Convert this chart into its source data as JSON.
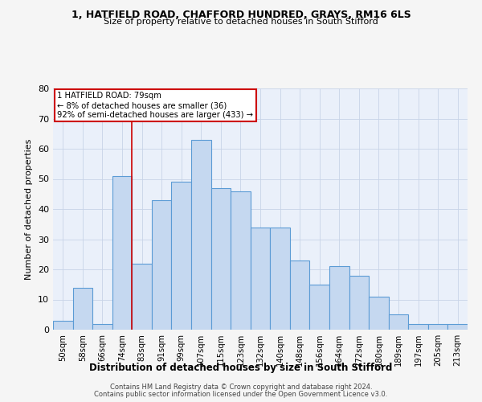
{
  "title_line1": "1, HATFIELD ROAD, CHAFFORD HUNDRED, GRAYS, RM16 6LS",
  "title_line2": "Size of property relative to detached houses in South Stifford",
  "xlabel": "Distribution of detached houses by size in South Stifford",
  "ylabel": "Number of detached properties",
  "categories": [
    "50sqm",
    "58sqm",
    "66sqm",
    "74sqm",
    "83sqm",
    "91sqm",
    "99sqm",
    "107sqm",
    "115sqm",
    "123sqm",
    "132sqm",
    "140sqm",
    "148sqm",
    "156sqm",
    "164sqm",
    "172sqm",
    "180sqm",
    "189sqm",
    "197sqm",
    "205sqm",
    "213sqm"
  ],
  "values": [
    3,
    14,
    2,
    51,
    22,
    43,
    49,
    63,
    47,
    46,
    34,
    34,
    23,
    15,
    21,
    18,
    11,
    5,
    2,
    2,
    2
  ],
  "bar_color": "#c5d8f0",
  "bar_edge_color": "#5b9bd5",
  "ylim": [
    0,
    80
  ],
  "yticks": [
    0,
    10,
    20,
    30,
    40,
    50,
    60,
    70,
    80
  ],
  "property_line_x": 3.5,
  "annotation_text_line1": "1 HATFIELD ROAD: 79sqm",
  "annotation_text_line2": "← 8% of detached houses are smaller (36)",
  "annotation_text_line3": "92% of semi-detached houses are larger (433) →",
  "annotation_box_color": "#ffffff",
  "annotation_border_color": "#cc0000",
  "vline_color": "#cc0000",
  "grid_color": "#c8d4e8",
  "bg_color": "#eaf0fa",
  "footer_line1": "Contains HM Land Registry data © Crown copyright and database right 2024.",
  "footer_line2": "Contains public sector information licensed under the Open Government Licence v3.0."
}
